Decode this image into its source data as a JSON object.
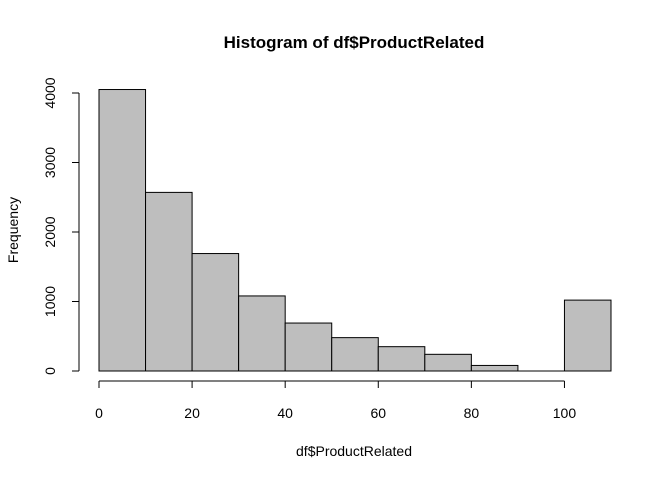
{
  "chart_data": {
    "type": "bar",
    "title": "Histogram of df$ProductRelated",
    "xlabel": "df$ProductRelated",
    "ylabel": "Frequency",
    "bins": [
      {
        "from": 0,
        "to": 10,
        "count": 4050
      },
      {
        "from": 10,
        "to": 20,
        "count": 2570
      },
      {
        "from": 20,
        "to": 30,
        "count": 1690
      },
      {
        "from": 30,
        "to": 40,
        "count": 1080
      },
      {
        "from": 40,
        "to": 50,
        "count": 690
      },
      {
        "from": 50,
        "to": 60,
        "count": 480
      },
      {
        "from": 60,
        "to": 70,
        "count": 350
      },
      {
        "from": 70,
        "to": 80,
        "count": 240
      },
      {
        "from": 80,
        "to": 90,
        "count": 80
      },
      {
        "from": 90,
        "to": 100,
        "count": 0
      },
      {
        "from": 100,
        "to": 110,
        "count": 1020
      }
    ],
    "xticks": [
      0,
      20,
      40,
      60,
      80,
      100
    ],
    "yticks": [
      0,
      1000,
      2000,
      3000,
      4000
    ],
    "xlim": [
      0,
      110
    ],
    "ylim": [
      0,
      4050
    ],
    "grid": false,
    "bar_fill": "#bebebe",
    "bar_stroke": "#000000"
  }
}
